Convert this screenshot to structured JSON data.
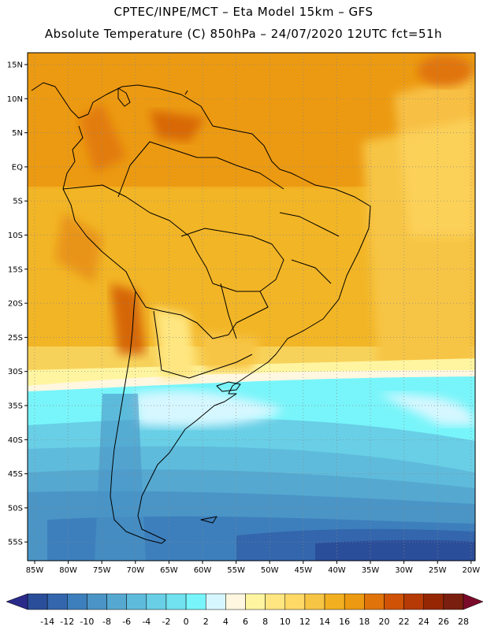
{
  "title_line1": "CPTEC/INPE/MCT –  Eta Model 15km – GFS",
  "title_line2": "Absolute Temperature (C) 850hPa – 24/07/2020 12UTC fct=51h",
  "lat_labels": [
    "15N",
    "10N",
    "5N",
    "EQ",
    "5S",
    "10S",
    "15S",
    "20S",
    "25S",
    "30S",
    "35S",
    "40S",
    "45S",
    "50S",
    "55S"
  ],
  "lon_labels": [
    "85W",
    "80W",
    "75W",
    "70W",
    "65W",
    "60W",
    "55W",
    "50W",
    "45W",
    "40W",
    "35W",
    "30W",
    "25W",
    "20W"
  ],
  "colorbar": {
    "labels": [
      "-14",
      "-12",
      "-10",
      "-8",
      "-6",
      "-4",
      "-2",
      "0",
      "2",
      "4",
      "6",
      "8",
      "10",
      "12",
      "14",
      "16",
      "18",
      "20",
      "22",
      "24",
      "26",
      "28"
    ],
    "colors": [
      "#2b4e9a",
      "#3366ad",
      "#3d7fbc",
      "#4a95c6",
      "#55a9d1",
      "#5fbbdc",
      "#68cfe6",
      "#70e2f0",
      "#78f5fa",
      "#d6f7ff",
      "#fff7e0",
      "#fff5a0",
      "#ffe680",
      "#ffd966",
      "#f7c544",
      "#f2b021",
      "#ec9a12",
      "#e0740a",
      "#cf5206",
      "#b53a06",
      "#962705",
      "#7a1f10"
    ],
    "under_color": "#2a2a8a",
    "over_color": "#7a0a2a"
  }
}
